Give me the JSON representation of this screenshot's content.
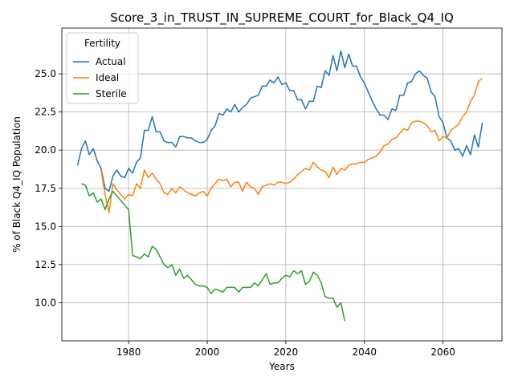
{
  "chart_data": {
    "type": "line",
    "title": "Score_3_in_TRUST_IN_SUPREME_COURT_for_Black_Q4_IQ",
    "xlabel": "Years",
    "ylabel": "% of Black Q4_IQ Population",
    "xlim": [
      1963,
      2075
    ],
    "ylim": [
      7.5,
      28.0
    ],
    "xticks": [
      1980,
      2000,
      2020,
      2040,
      2060
    ],
    "yticks": [
      10.0,
      12.5,
      15.0,
      17.5,
      20.0,
      22.5,
      25.0
    ],
    "grid": true,
    "legend": {
      "title": "Fertility",
      "placement": "top-left"
    },
    "series": [
      {
        "name": "Actual",
        "color": "#1f77b4",
        "points": [
          [
            1967,
            19.0
          ],
          [
            1968,
            20.1
          ],
          [
            1969,
            20.6
          ],
          [
            1970,
            19.7
          ],
          [
            1971,
            20.1
          ],
          [
            1972,
            19.3
          ],
          [
            1973,
            18.8
          ],
          [
            1974,
            17.5
          ],
          [
            1975,
            17.3
          ],
          [
            1976,
            18.3
          ],
          [
            1977,
            18.7
          ],
          [
            1978,
            18.3
          ],
          [
            1979,
            18.2
          ],
          [
            1980,
            18.8
          ],
          [
            1981,
            18.5
          ],
          [
            1982,
            19.2
          ],
          [
            1983,
            19.5
          ],
          [
            1984,
            21.3
          ],
          [
            1985,
            21.3
          ],
          [
            1986,
            22.2
          ],
          [
            1987,
            21.2
          ],
          [
            1988,
            21.2
          ],
          [
            1989,
            20.6
          ],
          [
            1990,
            20.5
          ],
          [
            1991,
            20.5
          ],
          [
            1992,
            20.2
          ],
          [
            1993,
            20.9
          ],
          [
            1994,
            20.9
          ],
          [
            1995,
            20.8
          ],
          [
            1996,
            20.8
          ],
          [
            1997,
            20.6
          ],
          [
            1998,
            20.5
          ],
          [
            1999,
            20.5
          ],
          [
            2000,
            20.7
          ],
          [
            2001,
            21.3
          ],
          [
            2002,
            21.6
          ],
          [
            2003,
            22.4
          ],
          [
            2004,
            22.3
          ],
          [
            2005,
            22.7
          ],
          [
            2006,
            22.5
          ],
          [
            2007,
            23.0
          ],
          [
            2008,
            22.5
          ],
          [
            2009,
            22.8
          ],
          [
            2010,
            23.0
          ],
          [
            2011,
            23.4
          ],
          [
            2012,
            23.5
          ],
          [
            2013,
            23.6
          ],
          [
            2014,
            24.2
          ],
          [
            2015,
            24.2
          ],
          [
            2016,
            24.6
          ],
          [
            2017,
            24.4
          ],
          [
            2018,
            24.8
          ],
          [
            2019,
            24.3
          ],
          [
            2020,
            24.4
          ],
          [
            2021,
            23.9
          ],
          [
            2022,
            23.9
          ],
          [
            2023,
            23.3
          ],
          [
            2024,
            23.3
          ],
          [
            2025,
            22.7
          ],
          [
            2026,
            23.2
          ],
          [
            2027,
            23.2
          ],
          [
            2028,
            24.2
          ],
          [
            2029,
            24.1
          ],
          [
            2030,
            25.2
          ],
          [
            2031,
            24.9
          ],
          [
            2032,
            26.2
          ],
          [
            2033,
            25.2
          ],
          [
            2034,
            26.5
          ],
          [
            2035,
            25.4
          ],
          [
            2036,
            26.3
          ],
          [
            2037,
            25.5
          ],
          [
            2038,
            25.5
          ],
          [
            2039,
            24.8
          ],
          [
            2040,
            24.4
          ],
          [
            2041,
            23.8
          ],
          [
            2042,
            23.2
          ],
          [
            2043,
            22.7
          ],
          [
            2044,
            22.3
          ],
          [
            2045,
            22.3
          ],
          [
            2046,
            22.0
          ],
          [
            2047,
            22.7
          ],
          [
            2048,
            22.6
          ],
          [
            2049,
            23.6
          ],
          [
            2050,
            23.6
          ],
          [
            2051,
            24.4
          ],
          [
            2052,
            24.5
          ],
          [
            2053,
            25.0
          ],
          [
            2054,
            25.2
          ],
          [
            2055,
            24.9
          ],
          [
            2056,
            24.7
          ],
          [
            2057,
            23.8
          ],
          [
            2058,
            23.5
          ],
          [
            2059,
            22.2
          ],
          [
            2060,
            21.8
          ],
          [
            2061,
            20.8
          ],
          [
            2062,
            20.6
          ],
          [
            2063,
            20.0
          ],
          [
            2064,
            20.1
          ],
          [
            2065,
            19.6
          ],
          [
            2066,
            20.3
          ],
          [
            2067,
            19.7
          ],
          [
            2068,
            21.0
          ],
          [
            2069,
            20.2
          ],
          [
            2070,
            21.8
          ]
        ]
      },
      {
        "name": "Ideal",
        "color": "#ff7f0e",
        "points": [
          [
            1973,
            18.7
          ],
          [
            1974,
            17.1
          ],
          [
            1975,
            15.9
          ],
          [
            1976,
            17.8
          ],
          [
            1977,
            17.4
          ],
          [
            1978,
            17.1
          ],
          [
            1979,
            16.8
          ],
          [
            1980,
            17.1
          ],
          [
            1981,
            17.0
          ],
          [
            1982,
            17.8
          ],
          [
            1983,
            17.5
          ],
          [
            1984,
            18.7
          ],
          [
            1985,
            18.2
          ],
          [
            1986,
            18.5
          ],
          [
            1987,
            18.1
          ],
          [
            1988,
            17.8
          ],
          [
            1989,
            17.2
          ],
          [
            1990,
            17.1
          ],
          [
            1991,
            17.5
          ],
          [
            1992,
            17.2
          ],
          [
            1993,
            17.6
          ],
          [
            1994,
            17.4
          ],
          [
            1995,
            17.2
          ],
          [
            1996,
            17.1
          ],
          [
            1997,
            17.0
          ],
          [
            1998,
            17.2
          ],
          [
            1999,
            17.3
          ],
          [
            2000,
            17.0
          ],
          [
            2001,
            17.5
          ],
          [
            2002,
            17.8
          ],
          [
            2003,
            18.1
          ],
          [
            2004,
            18.0
          ],
          [
            2005,
            18.1
          ],
          [
            2006,
            17.6
          ],
          [
            2007,
            17.9
          ],
          [
            2008,
            17.9
          ],
          [
            2009,
            17.3
          ],
          [
            2010,
            17.9
          ],
          [
            2011,
            17.6
          ],
          [
            2012,
            17.5
          ],
          [
            2013,
            17.1
          ],
          [
            2014,
            17.6
          ],
          [
            2015,
            17.7
          ],
          [
            2016,
            17.8
          ],
          [
            2017,
            17.7
          ],
          [
            2018,
            17.9
          ],
          [
            2019,
            17.9
          ],
          [
            2020,
            17.8
          ],
          [
            2021,
            17.9
          ],
          [
            2022,
            18.1
          ],
          [
            2023,
            18.4
          ],
          [
            2024,
            18.6
          ],
          [
            2025,
            18.8
          ],
          [
            2026,
            18.7
          ],
          [
            2027,
            19.2
          ],
          [
            2028,
            18.9
          ],
          [
            2029,
            18.7
          ],
          [
            2030,
            18.6
          ],
          [
            2031,
            18.2
          ],
          [
            2032,
            18.9
          ],
          [
            2033,
            18.4
          ],
          [
            2034,
            18.8
          ],
          [
            2035,
            18.7
          ],
          [
            2036,
            19.0
          ],
          [
            2037,
            19.1
          ],
          [
            2038,
            19.1
          ],
          [
            2039,
            19.2
          ],
          [
            2040,
            19.2
          ],
          [
            2041,
            19.4
          ],
          [
            2042,
            19.5
          ],
          [
            2043,
            19.6
          ],
          [
            2044,
            19.9
          ],
          [
            2045,
            20.3
          ],
          [
            2046,
            20.4
          ],
          [
            2047,
            20.7
          ],
          [
            2048,
            20.8
          ],
          [
            2049,
            21.1
          ],
          [
            2050,
            21.4
          ],
          [
            2051,
            21.3
          ],
          [
            2052,
            21.8
          ],
          [
            2053,
            21.9
          ],
          [
            2054,
            21.9
          ],
          [
            2055,
            21.8
          ],
          [
            2056,
            21.6
          ],
          [
            2057,
            21.2
          ],
          [
            2058,
            21.3
          ],
          [
            2059,
            20.6
          ],
          [
            2060,
            20.9
          ],
          [
            2061,
            20.8
          ],
          [
            2062,
            21.3
          ],
          [
            2063,
            21.5
          ],
          [
            2064,
            21.7
          ],
          [
            2065,
            22.2
          ],
          [
            2066,
            22.5
          ],
          [
            2067,
            23.2
          ],
          [
            2068,
            23.6
          ],
          [
            2069,
            24.5
          ],
          [
            2070,
            24.7
          ]
        ]
      },
      {
        "name": "Sterile",
        "color": "#2ca02c",
        "points": [
          [
            1968,
            17.8
          ],
          [
            1969,
            17.7
          ],
          [
            1970,
            17.0
          ],
          [
            1971,
            17.2
          ],
          [
            1972,
            16.6
          ],
          [
            1973,
            16.8
          ],
          [
            1974,
            16.1
          ],
          [
            1975,
            16.8
          ],
          [
            1976,
            17.3
          ],
          [
            1977,
            17.0
          ],
          [
            1978,
            16.7
          ],
          [
            1979,
            16.4
          ],
          [
            1980,
            16.1
          ],
          [
            1981,
            13.1
          ],
          [
            1982,
            13.0
          ],
          [
            1983,
            12.9
          ],
          [
            1984,
            13.2
          ],
          [
            1985,
            13.0
          ],
          [
            1986,
            13.7
          ],
          [
            1987,
            13.5
          ],
          [
            1988,
            13.0
          ],
          [
            1989,
            12.5
          ],
          [
            1990,
            12.3
          ],
          [
            1991,
            12.5
          ],
          [
            1992,
            11.8
          ],
          [
            1993,
            12.2
          ],
          [
            1994,
            11.6
          ],
          [
            1995,
            11.8
          ],
          [
            1996,
            11.5
          ],
          [
            1997,
            11.2
          ],
          [
            1998,
            11.1
          ],
          [
            1999,
            11.1
          ],
          [
            2000,
            11.0
          ],
          [
            2001,
            10.6
          ],
          [
            2002,
            10.9
          ],
          [
            2003,
            10.8
          ],
          [
            2004,
            10.7
          ],
          [
            2005,
            11.0
          ],
          [
            2006,
            11.0
          ],
          [
            2007,
            11.0
          ],
          [
            2008,
            10.7
          ],
          [
            2009,
            11.0
          ],
          [
            2010,
            11.0
          ],
          [
            2011,
            11.0
          ],
          [
            2012,
            11.3
          ],
          [
            2013,
            11.1
          ],
          [
            2014,
            11.5
          ],
          [
            2015,
            11.9
          ],
          [
            2016,
            11.2
          ],
          [
            2017,
            11.3
          ],
          [
            2018,
            11.3
          ],
          [
            2019,
            11.6
          ],
          [
            2020,
            11.8
          ],
          [
            2021,
            11.7
          ],
          [
            2022,
            12.1
          ],
          [
            2023,
            11.9
          ],
          [
            2024,
            12.1
          ],
          [
            2025,
            11.2
          ],
          [
            2026,
            11.4
          ],
          [
            2027,
            12.0
          ],
          [
            2028,
            11.8
          ],
          [
            2029,
            11.3
          ],
          [
            2030,
            10.4
          ],
          [
            2031,
            10.3
          ],
          [
            2032,
            10.3
          ],
          [
            2033,
            9.7
          ],
          [
            2034,
            10.0
          ],
          [
            2035,
            8.8
          ]
        ]
      }
    ]
  }
}
